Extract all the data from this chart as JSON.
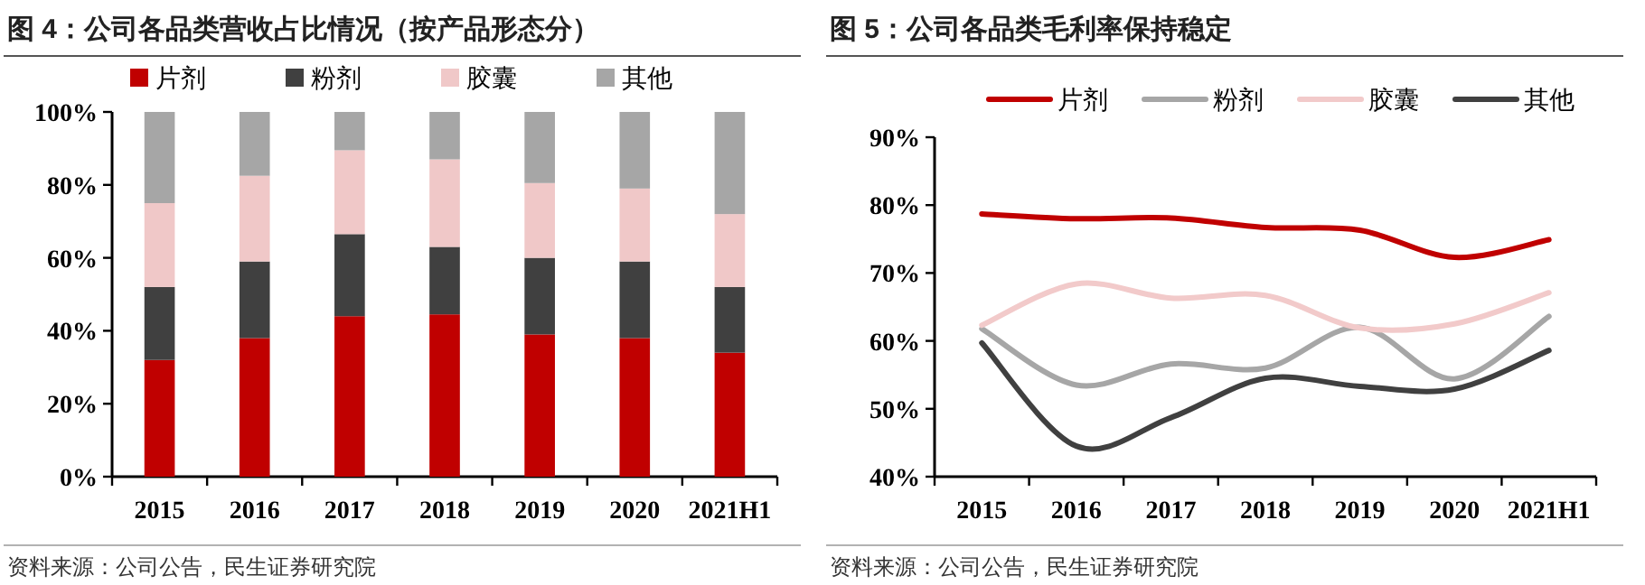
{
  "chart_data": [
    {
      "type": "bar",
      "title": "图 4：公司各品类营收占比情况（按产品形态分）",
      "stacked": true,
      "legend": "top",
      "categories": [
        "2015",
        "2016",
        "2017",
        "2018",
        "2019",
        "2020",
        "2021H1"
      ],
      "series": [
        {
          "name": "片剂",
          "color": "#c00000",
          "values": [
            32,
            38,
            44,
            44.5,
            39,
            38,
            34
          ]
        },
        {
          "name": "粉剂",
          "color": "#404040",
          "values": [
            20,
            21,
            22.5,
            18.5,
            21,
            21,
            18
          ]
        },
        {
          "name": "胶囊",
          "color": "#f0c8c8",
          "values": [
            23,
            23.5,
            23,
            24,
            20.5,
            20,
            20
          ]
        },
        {
          "name": "其他",
          "color": "#a6a6a6",
          "values": [
            25,
            17.5,
            10.5,
            13,
            19.5,
            21,
            28
          ]
        }
      ],
      "ylim": [
        0,
        100
      ],
      "yticks": [
        {
          "value": 0,
          "label": "0%"
        },
        {
          "value": 20,
          "label": "20%"
        },
        {
          "value": 40,
          "label": "40%"
        },
        {
          "value": 60,
          "label": "60%"
        },
        {
          "value": 80,
          "label": "80%"
        },
        {
          "value": 100,
          "label": "100%"
        }
      ],
      "annotations": [
        "资料来源：公司公告，民生证券研究院"
      ]
    },
    {
      "type": "line",
      "title": "图 5：公司各品类毛利率保持稳定",
      "legend": "top",
      "categories": [
        "2015",
        "2016",
        "2017",
        "2018",
        "2019",
        "2020",
        "2021H1"
      ],
      "series": [
        {
          "name": "片剂",
          "color": "#c00000",
          "values": [
            78.7,
            78.0,
            78.1,
            76.7,
            76.3,
            72.3,
            74.9
          ]
        },
        {
          "name": "粉剂",
          "color": "#a6a6a6",
          "values": [
            61.8,
            53.5,
            56.6,
            56.0,
            62.0,
            54.4,
            63.6
          ]
        },
        {
          "name": "胶囊",
          "color": "#f2caca",
          "values": [
            62.3,
            68.4,
            66.3,
            66.7,
            61.9,
            62.5,
            67.1
          ]
        },
        {
          "name": "其他",
          "color": "#404040",
          "values": [
            59.7,
            44.5,
            48.7,
            54.5,
            53.3,
            52.9,
            58.6
          ]
        }
      ],
      "ylim": [
        40,
        90
      ],
      "yticks": [
        {
          "value": 40,
          "label": "40%"
        },
        {
          "value": 50,
          "label": "50%"
        },
        {
          "value": 60,
          "label": "60%"
        },
        {
          "value": 70,
          "label": "70%"
        },
        {
          "value": 80,
          "label": "80%"
        },
        {
          "value": 90,
          "label": "90%"
        }
      ],
      "annotations": [
        "资料来源：公司公告，民生证券研究院"
      ]
    }
  ]
}
